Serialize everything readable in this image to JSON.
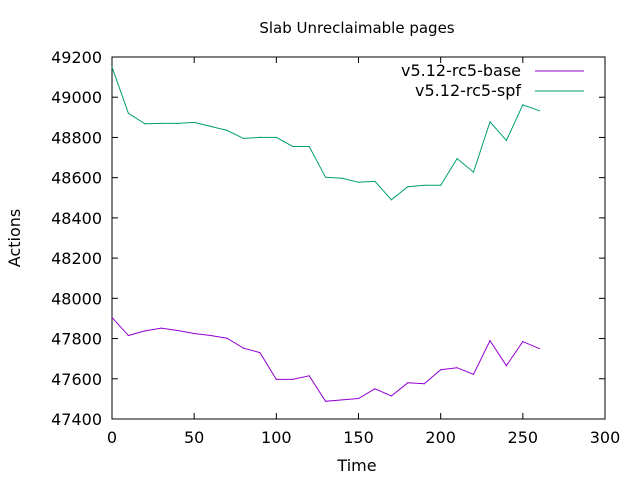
{
  "chart_data": {
    "type": "line",
    "title": "Slab Unreclaimable pages",
    "xlabel": "Time",
    "ylabel": "Actions",
    "xlim": [
      0,
      300
    ],
    "ylim": [
      47400,
      49200
    ],
    "xticks": [
      0,
      50,
      100,
      150,
      200,
      250,
      300
    ],
    "yticks": [
      47400,
      47600,
      47800,
      48000,
      48200,
      48400,
      48600,
      48800,
      49000,
      49200
    ],
    "grid": false,
    "legend_position": "top-right",
    "series": [
      {
        "name": "v5.12-rc5-base",
        "color": "#9400d3",
        "x": [
          0,
          10,
          20,
          30,
          40,
          50,
          60,
          70,
          80,
          90,
          100,
          110,
          120,
          130,
          140,
          150,
          160,
          170,
          180,
          190,
          200,
          210,
          220,
          230,
          240,
          250,
          260
        ],
        "y": [
          47905,
          47815,
          47838,
          47852,
          47840,
          47825,
          47815,
          47802,
          47752,
          47730,
          47597,
          47597,
          47615,
          47488,
          47495,
          47502,
          47550,
          47515,
          47580,
          47575,
          47645,
          47655,
          47622,
          47790,
          47665,
          47785,
          47750
        ]
      },
      {
        "name": "v5.12-rc5-spf",
        "color": "#009e73",
        "x": [
          0,
          10,
          20,
          30,
          40,
          50,
          60,
          70,
          80,
          90,
          100,
          110,
          120,
          130,
          140,
          150,
          160,
          170,
          180,
          190,
          200,
          210,
          220,
          230,
          240,
          250,
          260
        ],
        "y": [
          49150,
          48920,
          48868,
          48870,
          48870,
          48875,
          48855,
          48835,
          48795,
          48800,
          48800,
          48755,
          48755,
          48602,
          48597,
          48577,
          48582,
          48490,
          48555,
          48562,
          48562,
          48695,
          48627,
          48878,
          48785,
          48962,
          48933
        ]
      }
    ]
  }
}
